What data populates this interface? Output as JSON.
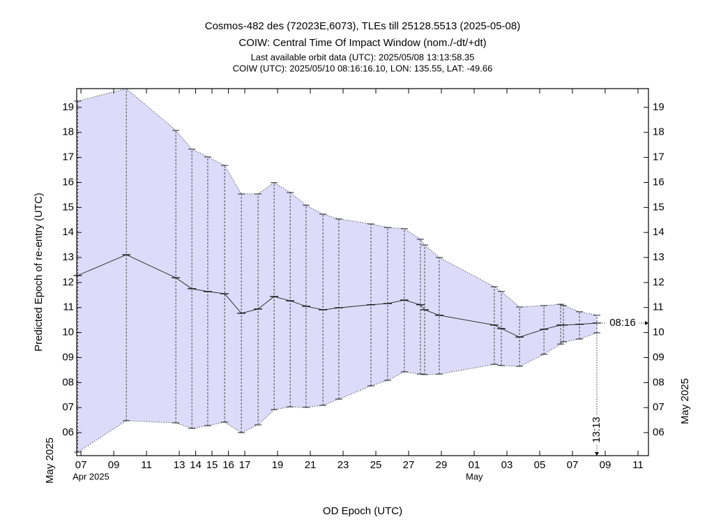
{
  "chart_data": {
    "type": "error_band",
    "title": "Cosmos-482 des (72023E,6073), TLEs till 25128.5513 (2025-05-08)",
    "subtitle": "COIW: Central Time Of Impact Window (nom./-dt/+dt)",
    "info": [
      "Last available orbit data (UTC): 2025/05/08 13:13:58.35",
      "COIW (UTC): 2025/05/10 08:16:16.10, LON: 135.55, LAT: -49.66"
    ],
    "xlabel": "OD Epoch (UTC)",
    "ylabel": "Predicted Epoch of re-entry (UTC)",
    "y_month_label": "May 2025",
    "x": [
      6.8,
      9.77,
      12.79,
      13.77,
      14.74,
      15.77,
      16.79,
      17.81,
      18.79,
      19.77,
      20.74,
      21.77,
      22.74,
      24.7,
      25.72,
      26.74,
      27.72,
      27.98,
      28.87,
      32.23,
      32.66,
      33.77,
      35.26,
      36.28,
      36.45,
      37.43,
      38.49
    ],
    "series": [
      {
        "name": "nom.",
        "color": "#333333",
        "values": [
          12.28,
          13.11,
          12.19,
          11.75,
          11.64,
          11.55,
          10.77,
          10.94,
          11.44,
          11.27,
          11.05,
          10.91,
          10.99,
          11.11,
          11.16,
          11.3,
          11.11,
          10.91,
          10.69,
          10.3,
          10.16,
          9.82,
          10.13,
          10.3,
          10.3,
          10.33,
          10.38
        ]
      },
      {
        "name": "-dt",
        "color": "#555555",
        "values": [
          5.22,
          6.48,
          6.39,
          6.17,
          6.28,
          6.42,
          6.0,
          6.31,
          6.92,
          7.03,
          7.01,
          7.09,
          7.34,
          7.87,
          8.09,
          8.43,
          8.34,
          8.32,
          8.34,
          8.73,
          8.68,
          8.65,
          9.13,
          9.54,
          9.63,
          9.74,
          9.99
        ]
      },
      {
        "name": "+dt",
        "color": "#555555",
        "values": [
          19.25,
          19.75,
          18.08,
          17.33,
          17.02,
          16.68,
          15.54,
          15.54,
          15.99,
          15.6,
          15.09,
          14.73,
          14.54,
          14.34,
          14.2,
          14.15,
          13.73,
          13.5,
          13.0,
          11.83,
          11.64,
          11.02,
          11.08,
          11.13,
          11.08,
          10.83,
          10.69
        ]
      }
    ],
    "band_color": "#dcdcfa",
    "annotations": [
      "08:16",
      "13:13"
    ],
    "xlim": [
      6.74,
      41.64
    ],
    "xticks": [
      {
        "value": 7,
        "label": "07"
      },
      {
        "value": 9,
        "label": "09"
      },
      11,
      13,
      14,
      15,
      16,
      17,
      19,
      21,
      23,
      25,
      27,
      29,
      {
        "value": 31,
        "label": "01"
      },
      {
        "value": 33,
        "label": "03"
      },
      {
        "value": 35,
        "label": "05"
      },
      {
        "value": 37,
        "label": "07"
      },
      {
        "value": 39,
        "label": "09"
      },
      {
        "value": 41,
        "label": "11"
      }
    ],
    "x_sublabels": [
      {
        "value": 7,
        "label": "Apr 2025"
      },
      {
        "value": 31,
        "label": "May"
      }
    ],
    "ylim": [
      5.08,
      19.75
    ],
    "yticks": [
      {
        "value": 6,
        "label": "06"
      },
      {
        "value": 7,
        "label": "07"
      },
      {
        "value": 8,
        "label": "08"
      },
      {
        "value": 9,
        "label": "09"
      },
      10,
      11,
      12,
      13,
      14,
      15,
      16,
      17,
      18,
      19
    ]
  }
}
